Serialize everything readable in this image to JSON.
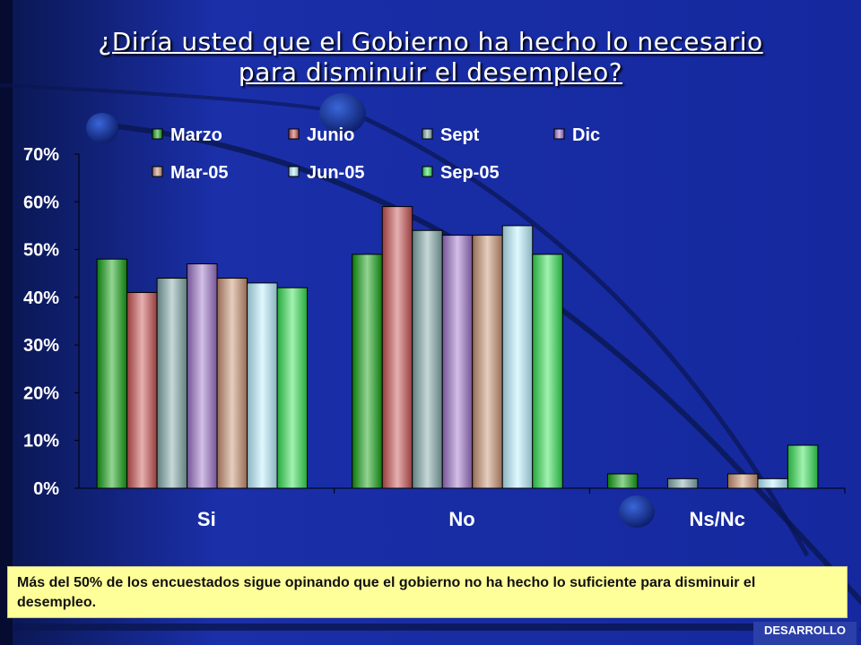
{
  "slide": {
    "title_line1": "¿Diría usted que el Gobierno ha hecho lo necesario",
    "title_line2": "para disminuir el desempleo?",
    "note": "Más del 50% de los encuestados sigue opinando que el gobierno no ha hecho lo suficiente para disminuir el desempleo.",
    "footer_label": "DESARROLLO"
  },
  "chart_data": {
    "type": "bar",
    "categories": [
      "Si",
      "No",
      "Ns/Nc"
    ],
    "series": [
      {
        "name": "Marzo",
        "values": [
          48,
          49,
          3
        ],
        "color": "#10a010"
      },
      {
        "name": "Junio",
        "values": [
          41,
          59,
          0
        ],
        "color": "#c85050"
      },
      {
        "name": "Sept",
        "values": [
          44,
          54,
          2
        ],
        "color": "#80a8a8"
      },
      {
        "name": "Dic",
        "values": [
          47,
          53,
          0
        ],
        "color": "#9a70c8"
      },
      {
        "name": "Mar-05",
        "values": [
          44,
          53,
          3
        ],
        "color": "#c89070"
      },
      {
        "name": "Jun-05",
        "values": [
          43,
          55,
          2
        ],
        "color": "#b8f0ff"
      },
      {
        "name": "Sep-05",
        "values": [
          42,
          49,
          9
        ],
        "color": "#30e050"
      }
    ],
    "yticks": [
      "0%",
      "10%",
      "20%",
      "30%",
      "40%",
      "50%",
      "60%",
      "70%"
    ],
    "ylim": [
      0,
      70
    ],
    "grid": false,
    "legend_position": "top"
  }
}
